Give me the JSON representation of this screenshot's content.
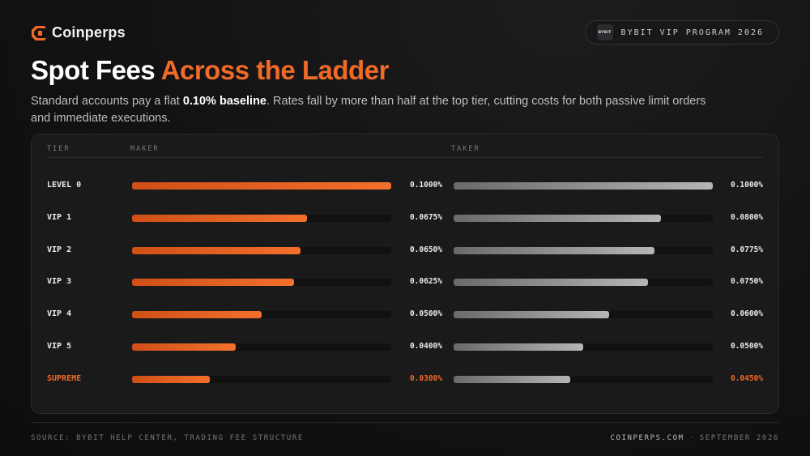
{
  "brand": {
    "name": "Coinperps",
    "accent": "#f06a28"
  },
  "badge": {
    "logo_text": "BYBIT",
    "label": "BYBIT VIP PROGRAM 2026"
  },
  "heading": {
    "part1": "Spot Fees",
    "part2": "Across the Ladder"
  },
  "subtitle": {
    "pre": "Standard accounts pay a flat ",
    "bold": "0.10% baseline",
    "post": ". Rates fall by more than half at the top tier, cutting costs for both passive limit orders and immediate executions."
  },
  "footer": {
    "source": "SOURCE: BYBIT HELP CENTER, TRADING FEE STRUCTURE",
    "site": "COINPERPS.COM",
    "date": "SEPTEMBER 2026"
  },
  "chart_data": {
    "type": "bar",
    "orientation": "horizontal",
    "columns": {
      "tier": "TIER",
      "maker": "MAKER",
      "taker": "TAKER"
    },
    "categories": [
      "LEVEL 0",
      "VIP 1",
      "VIP 2",
      "VIP 3",
      "VIP 4",
      "VIP 5",
      "SUPREME"
    ],
    "series": [
      {
        "name": "MAKER",
        "values": [
          0.1,
          0.0675,
          0.065,
          0.0625,
          0.05,
          0.04,
          0.03
        ],
        "labels": [
          "0.1000%",
          "0.0675%",
          "0.0650%",
          "0.0625%",
          "0.0500%",
          "0.0400%",
          "0.0300%"
        ],
        "color": "#f06a28"
      },
      {
        "name": "TAKER",
        "values": [
          0.1,
          0.08,
          0.0775,
          0.075,
          0.06,
          0.05,
          0.045
        ],
        "labels": [
          "0.1000%",
          "0.0800%",
          "0.0775%",
          "0.0750%",
          "0.0600%",
          "0.0500%",
          "0.0450%"
        ],
        "color": "#9a9a9a"
      }
    ],
    "xlim": [
      0,
      0.1
    ],
    "unit": "%",
    "highlight_category": "SUPREME",
    "grid": false
  }
}
